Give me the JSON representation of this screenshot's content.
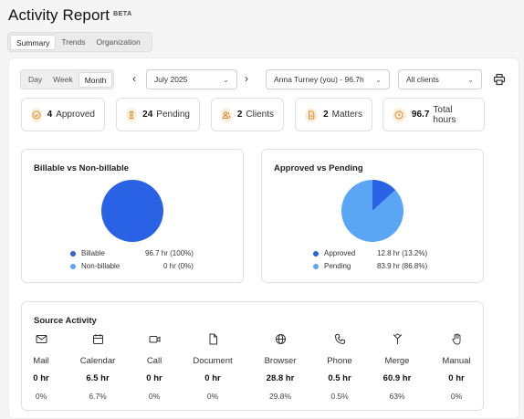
{
  "header": {
    "title": "Activity Report",
    "badge": "BETA"
  },
  "tabs": [
    "Summary",
    "Trends",
    "Organization"
  ],
  "period": [
    "Day",
    "Week",
    "Month"
  ],
  "month_select": "July 2025",
  "user_select": "Anna Turney (you) - 96.7h",
  "client_select": "All clients",
  "stats": [
    {
      "value": "4",
      "label": "Approved",
      "icon": "check-circle-icon"
    },
    {
      "value": "24",
      "label": "Pending",
      "icon": "hourglass-icon"
    },
    {
      "value": "2",
      "label": "Clients",
      "icon": "users-icon"
    },
    {
      "value": "2",
      "label": "Matters",
      "icon": "document-icon"
    },
    {
      "value": "96.7",
      "label": "Total hours",
      "icon": "clock-icon"
    }
  ],
  "billable": {
    "title": "Billable vs Non-billable",
    "rows": [
      {
        "label": "Billable",
        "value": "96.7 hr (100%)",
        "color": "#2a62e6"
      },
      {
        "label": "Non-billable",
        "value": "0 hr (0%)",
        "color": "#5aa6f5"
      }
    ]
  },
  "approved": {
    "title": "Approved vs Pending",
    "rows": [
      {
        "label": "Approved",
        "value": "12.8 hr (13.2%)",
        "color": "#2a62e6"
      },
      {
        "label": "Pending",
        "value": "83.9 hr (86.8%)",
        "color": "#5aa6f5"
      }
    ]
  },
  "chart_data": [
    {
      "type": "pie",
      "title": "Billable vs Non-billable",
      "categories": [
        "Billable",
        "Non-billable"
      ],
      "values": [
        96.7,
        0
      ]
    },
    {
      "type": "pie",
      "title": "Approved vs Pending",
      "categories": [
        "Approved",
        "Pending"
      ],
      "values": [
        12.8,
        83.9
      ]
    }
  ],
  "source": {
    "title": "Source Activity",
    "items": [
      {
        "name": "Mail",
        "hours": "0 hr",
        "pct": "0%",
        "icon": "mail-icon"
      },
      {
        "name": "Calendar",
        "hours": "6.5 hr",
        "pct": "6.7%",
        "icon": "calendar-icon"
      },
      {
        "name": "Call",
        "hours": "0 hr",
        "pct": "0%",
        "icon": "video-icon"
      },
      {
        "name": "Document",
        "hours": "0 hr",
        "pct": "0%",
        "icon": "file-icon"
      },
      {
        "name": "Browser",
        "hours": "28.8 hr",
        "pct": "29.8%",
        "icon": "globe-icon"
      },
      {
        "name": "Phone",
        "hours": "0.5 hr",
        "pct": "0.5%",
        "icon": "phone-icon"
      },
      {
        "name": "Merge",
        "hours": "60.9 hr",
        "pct": "63%",
        "icon": "merge-icon"
      },
      {
        "name": "Manual",
        "hours": "0 hr",
        "pct": "0%",
        "icon": "hand-icon"
      }
    ]
  }
}
